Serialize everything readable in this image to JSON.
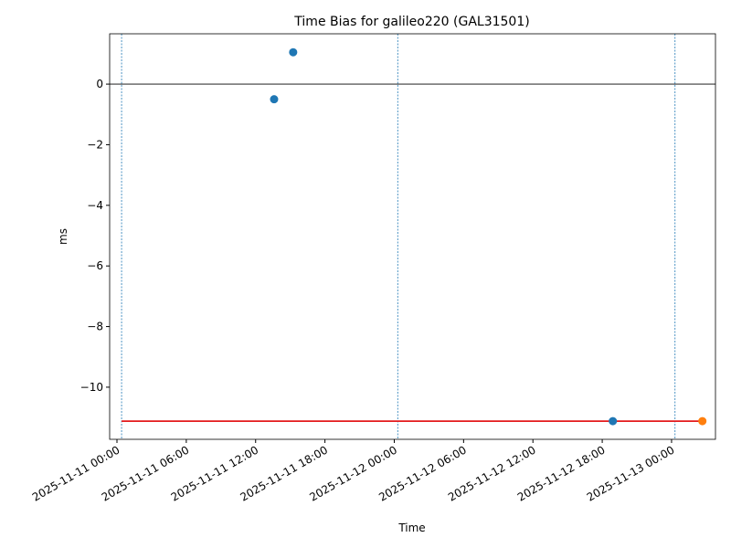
{
  "chart_data": {
    "type": "scatter",
    "title": "Time Bias for galileo220 (GAL31501)",
    "x_label": "Time",
    "y_label": "ms",
    "series": [
      {
        "color": "#1f77b4",
        "x": [
          "2025-11-11 13:36",
          "2025-11-11 15:15",
          "2025-11-12 18:55"
        ],
        "values": [
          -0.5,
          1.05,
          -11.12
        ]
      },
      {
        "color": "#ff7f0e",
        "x": [
          "2025-11-13 02:40"
        ],
        "values": [
          -11.12
        ]
      }
    ],
    "reference_line": {
      "color": "#e41a1c",
      "x": [
        "2025-11-11 00:24",
        "2025-11-13 02:40"
      ],
      "values": [
        -11.12,
        -11.12
      ]
    },
    "vlines": {
      "color": "#1f77b4",
      "x": [
        "2025-11-11 00:24",
        "2025-11-12 00:18",
        "2025-11-13 00:18"
      ]
    },
    "hline": {
      "color": "#000000",
      "value": 0
    },
    "xlim": [
      "2025-11-10 23:22",
      "2025-11-13 03:48"
    ],
    "ylim": [
      -11.72,
      1.66
    ],
    "xticks": [
      "2025-11-11 00:00",
      "2025-11-11 06:00",
      "2025-11-11 12:00",
      "2025-11-11 18:00",
      "2025-11-12 00:00",
      "2025-11-12 06:00",
      "2025-11-12 12:00",
      "2025-11-12 18:00",
      "2025-11-13 00:00"
    ],
    "yticks": [
      {
        "value": -10,
        "label": "−10"
      },
      {
        "value": -8,
        "label": "−8"
      },
      {
        "value": -6,
        "label": "−6"
      },
      {
        "value": -4,
        "label": "−4"
      },
      {
        "value": -2,
        "label": "−2"
      },
      0
    ]
  }
}
